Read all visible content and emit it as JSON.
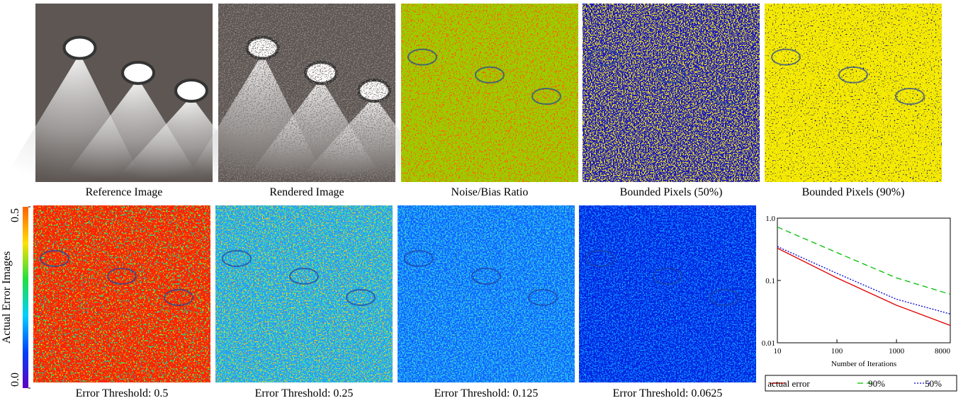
{
  "panels": {
    "top": [
      "Reference Image",
      "Rendered Image",
      "Noise/Bias Ratio",
      "Bounded Pixels (50%)",
      "Bounded Pixels (90%)"
    ],
    "bottom": [
      "Error Threshold: 0.5",
      "Error Threshold: 0.25",
      "Error Threshold: 0.125",
      "Error Threshold: 0.0625"
    ]
  },
  "colorbar": {
    "label": "Actual Error Images",
    "ticks": [
      0.5,
      {
        "value": 0,
        "label": "0.0"
      }
    ]
  },
  "chart_data": {
    "type": "line",
    "xlabel": "Number of Iterations",
    "log_x": true,
    "log_y": true,
    "x": [
      10,
      100,
      1000,
      8000
    ],
    "xlim": [
      10,
      8000
    ],
    "xticks": [
      10,
      100,
      1000,
      8000
    ],
    "ylim": [
      0.01,
      1
    ],
    "yticks": [
      {
        "value": 1,
        "label": "1.0"
      },
      0.1,
      0.01
    ],
    "series": [
      {
        "name": "actual error",
        "color": "#e00000",
        "dash": "none",
        "values": [
          0.33,
          0.11,
          0.04,
          0.019
        ]
      },
      {
        "name": "90%",
        "color": "#00c000",
        "dash": "8 5",
        "values": [
          0.72,
          0.28,
          0.11,
          0.06
        ]
      },
      {
        "name": "50%",
        "color": "#0000d0",
        "dash": "2 2",
        "values": [
          0.35,
          0.13,
          0.05,
          0.029
        ]
      }
    ]
  }
}
